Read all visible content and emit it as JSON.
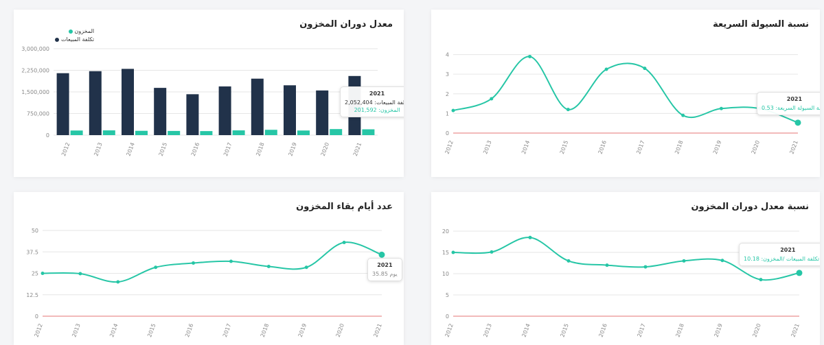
{
  "colors": {
    "teal": "#26c6a6",
    "navy": "#21324a",
    "red": "#e57373",
    "grid": "#e6e6e6"
  },
  "cards": {
    "inventory_turnover": {
      "title": "معدل دوران المخزون",
      "legend": [
        {
          "label": "المخزون",
          "color": "#26c6a6"
        },
        {
          "label": "تكلفة المبيعات",
          "color": "#21324a"
        }
      ],
      "tooltip": {
        "title": "2021",
        "row1_label": "تكلفة المبيعات:",
        "row1_value": "2,052,404",
        "row2_label": "المخزون:",
        "row2_value": "201,592"
      }
    },
    "quick_ratio": {
      "title": "نسبة السيولة السريعة",
      "tooltip": {
        "title": "2021",
        "row1_label": "نسبة السيولة السريعة:",
        "row1_value": "0.53"
      }
    },
    "days_inventory": {
      "title": "عدد أيام بقاء المخزون",
      "tooltip": {
        "title": "2021",
        "row1_value": "35.85",
        "row1_label": "يوم"
      }
    },
    "turnover_ratio": {
      "title": "نسبة معدل دوران المخزون",
      "tooltip": {
        "title": "2021",
        "row1_label": "نسبة تكلفة المبيعات /المخزون:",
        "row1_value": "10.18"
      }
    }
  },
  "chart_data": [
    {
      "id": "inventory_turnover",
      "type": "bar",
      "title": "معدل دوران المخزون",
      "categories": [
        "2012",
        "2013",
        "2014",
        "2015",
        "2016",
        "2017",
        "2018",
        "2019",
        "2020",
        "2021"
      ],
      "series": [
        {
          "name": "تكلفة المبيعات",
          "color": "#21324a",
          "values": [
            2150000,
            2220000,
            2300000,
            1640000,
            1420000,
            1690000,
            1960000,
            1730000,
            1550000,
            2052404
          ]
        },
        {
          "name": "المخزون",
          "color": "#26c6a6",
          "values": [
            160000,
            165000,
            150000,
            145000,
            140000,
            165000,
            185000,
            160000,
            210000,
            201592
          ]
        }
      ],
      "yticks": [
        "0",
        "750,000",
        "1,500,000",
        "2,250,000",
        "3,000,000"
      ],
      "ylim": [
        0,
        3000000
      ],
      "grid": true,
      "legend_position": "top-left"
    },
    {
      "id": "quick_ratio",
      "type": "line",
      "title": "نسبة السيولة السريعة",
      "categories": [
        "2012",
        "2013",
        "2014",
        "2015",
        "2016",
        "2017",
        "2018",
        "2019",
        "2020",
        "2021"
      ],
      "values": [
        1.15,
        1.75,
        3.9,
        1.2,
        3.25,
        3.3,
        0.9,
        1.25,
        1.25,
        0.53
      ],
      "yticks": [
        "0",
        "1",
        "2",
        "3",
        "4"
      ],
      "ylim": [
        0,
        4.3
      ],
      "reference_line": 0,
      "grid": true
    },
    {
      "id": "days_inventory",
      "type": "line",
      "title": "عدد أيام بقاء المخزون",
      "categories": [
        "2012",
        "2013",
        "2014",
        "2015",
        "2016",
        "2017",
        "2018",
        "2019",
        "2020",
        "2021"
      ],
      "values": [
        25,
        24.8,
        20,
        28.5,
        31,
        32,
        29,
        28.5,
        43,
        35.85
      ],
      "yticks": [
        "0",
        "12.5",
        "25",
        "37.5",
        "50"
      ],
      "ylim": [
        0,
        50
      ],
      "reference_line": 0,
      "grid": true
    },
    {
      "id": "turnover_ratio",
      "type": "line",
      "title": "نسبة معدل دوران المخزون",
      "categories": [
        "2012",
        "2013",
        "2014",
        "2015",
        "2016",
        "2017",
        "2018",
        "2019",
        "2020",
        "2021"
      ],
      "values": [
        15,
        15.1,
        18.5,
        13,
        12,
        11.6,
        13,
        13.1,
        8.6,
        10.18
      ],
      "yticks": [
        "0",
        "5",
        "10",
        "15",
        "20"
      ],
      "ylim": [
        0,
        20
      ],
      "reference_line": 0,
      "grid": true
    }
  ]
}
